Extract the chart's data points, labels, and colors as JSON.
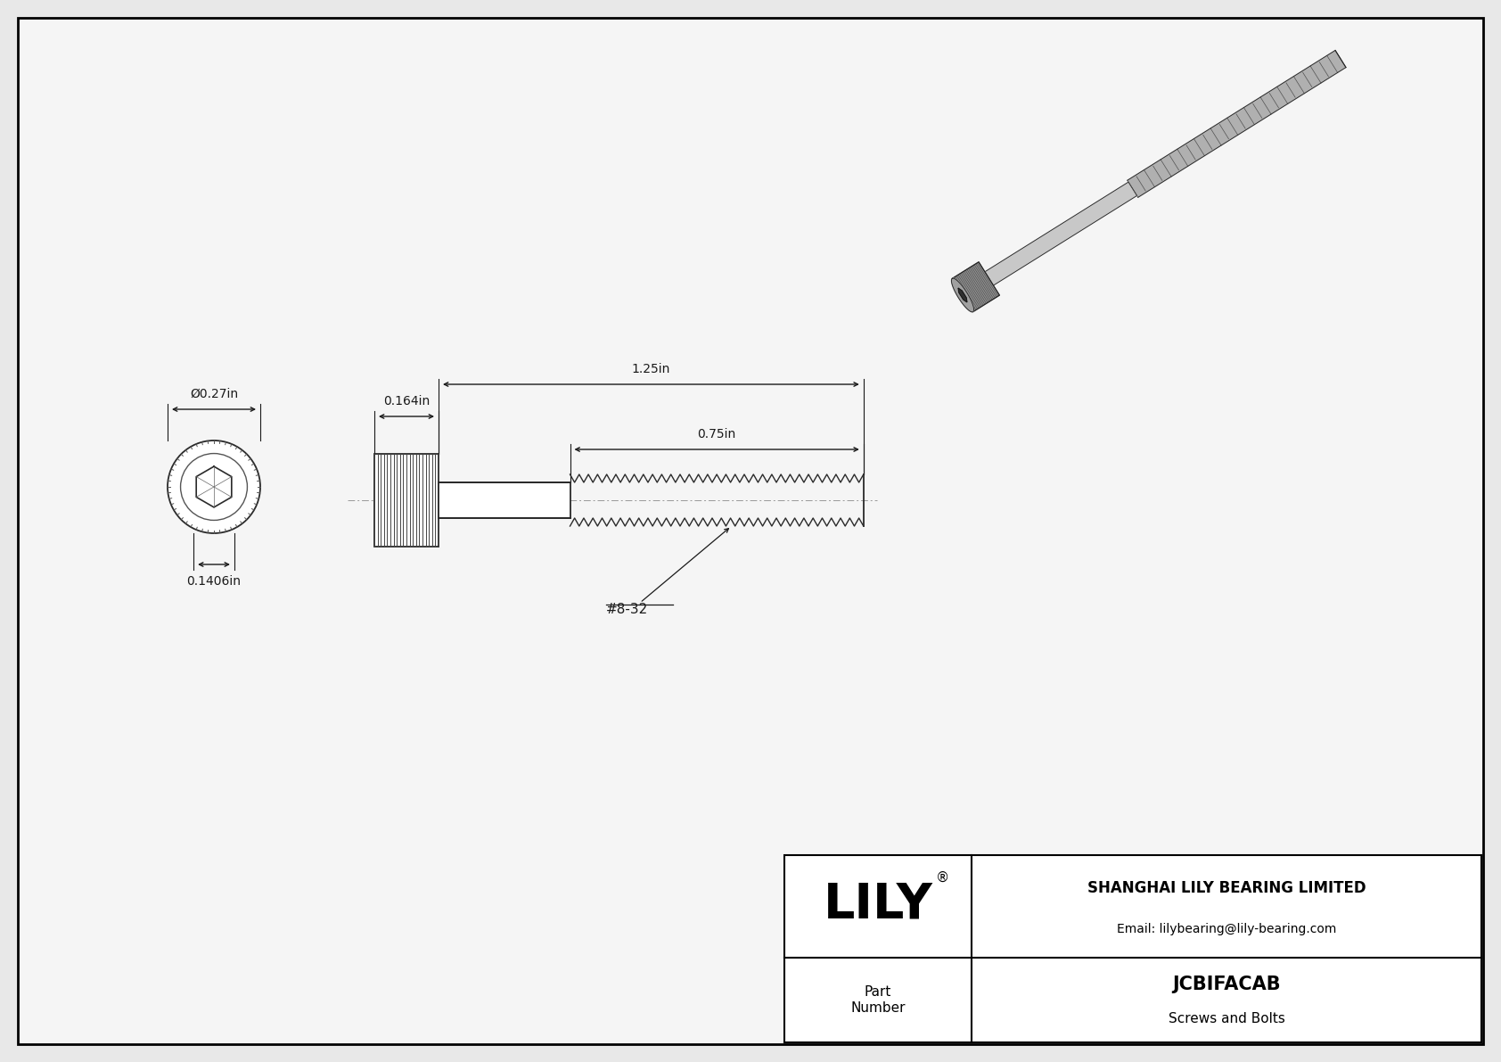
{
  "bg_color": "#e8e8e8",
  "drawing_bg": "#f5f5f5",
  "border_color": "#000000",
  "line_color": "#2a2a2a",
  "dim_color": "#1a1a1a",
  "title": "JCBIFACAB",
  "subtitle": "Screws and Bolts",
  "company": "SHANGHAI LILY BEARING LIMITED",
  "email": "Email: lilybearing@lily-bearing.com",
  "part_label": "Part\nNumber",
  "logo": "LILY",
  "dim_head_width": "0.164in",
  "dim_total_length": "1.25in",
  "dim_thread_length": "0.75in",
  "dim_outer_diameter": "Ø0.27in",
  "dim_hex_size": "0.1406in",
  "thread_label": "#8-32",
  "fig_width": 16.84,
  "fig_height": 11.91,
  "dpi": 100
}
